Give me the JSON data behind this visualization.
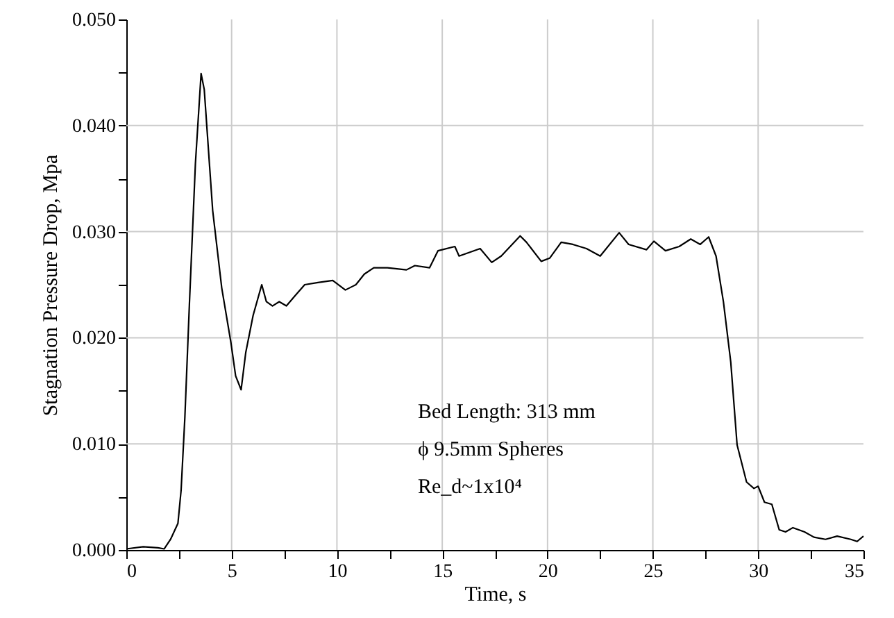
{
  "chart_data": {
    "type": "line",
    "xlabel": "Time, s",
    "ylabel": "Stagnation Pressure Drop, Mpa",
    "annotations": [
      "Bed Length: 313 mm",
      "ϕ 9.5mm Spheres",
      "Re_d~1x10⁴"
    ],
    "x": [
      0,
      0.8,
      1.5,
      1.8,
      2.1,
      2.45,
      2.6,
      2.78,
      3.0,
      3.28,
      3.55,
      3.7,
      4.1,
      4.53,
      4.97,
      5.19,
      5.45,
      5.67,
      6.02,
      6.43,
      6.65,
      6.94,
      7.26,
      7.6,
      8.03,
      8.47,
      9.1,
      9.8,
      10.4,
      10.9,
      11.3,
      11.75,
      12.4,
      13.3,
      13.7,
      14.4,
      14.8,
      15.6,
      15.8,
      16.8,
      17.35,
      17.8,
      18.7,
      19.0,
      19.7,
      20.1,
      20.65,
      21.2,
      21.85,
      22.5,
      23.4,
      23.85,
      24.7,
      25.05,
      25.6,
      26.25,
      26.8,
      27.25,
      27.65,
      28.0,
      28.35,
      28.7,
      29.0,
      29.45,
      29.8,
      30.0,
      30.3,
      30.65,
      31.0,
      31.3,
      31.65,
      32.2,
      32.65,
      33.2,
      33.75,
      34.4,
      34.7,
      35.0
    ],
    "series": [
      {
        "color": "#000000",
        "values": [
          0.0001,
          0.0003,
          0.0002,
          0.0001,
          0.001,
          0.0025,
          0.0056,
          0.0125,
          0.0234,
          0.0364,
          0.0449,
          0.0434,
          0.032,
          0.0247,
          0.0195,
          0.0164,
          0.0151,
          0.0186,
          0.0221,
          0.025,
          0.0234,
          0.023,
          0.0234,
          0.023,
          0.024,
          0.025,
          0.0252,
          0.0254,
          0.0245,
          0.025,
          0.026,
          0.0266,
          0.0266,
          0.0264,
          0.0268,
          0.0266,
          0.0282,
          0.0286,
          0.0277,
          0.0284,
          0.0271,
          0.0277,
          0.0296,
          0.029,
          0.0272,
          0.0275,
          0.029,
          0.0288,
          0.0284,
          0.0277,
          0.0299,
          0.0288,
          0.0283,
          0.0291,
          0.0282,
          0.0286,
          0.0293,
          0.0288,
          0.0295,
          0.0277,
          0.0234,
          0.0177,
          0.0099,
          0.0064,
          0.0058,
          0.006,
          0.0045,
          0.0043,
          0.0019,
          0.0017,
          0.0021,
          0.0017,
          0.0012,
          0.001,
          0.0013,
          0.001,
          0.0008,
          0.0013
        ]
      }
    ],
    "xlim": [
      0,
      35
    ],
    "xticks": [
      0,
      {
        "value": 2.5,
        "label": null
      },
      5,
      {
        "value": 7.5,
        "label": null
      },
      10,
      {
        "value": 12.5,
        "label": null
      },
      15,
      {
        "value": 17.5,
        "label": null
      },
      20,
      {
        "value": 22.5,
        "label": null
      },
      25,
      {
        "value": 27.5,
        "label": null
      },
      30,
      {
        "value": 32.5,
        "label": null
      },
      35
    ],
    "ylim": [
      0,
      0.05
    ],
    "yticks": [
      {
        "value": 0,
        "label": "0.000"
      },
      {
        "value": 0.005,
        "label": null
      },
      {
        "value": 0.01,
        "label": "0.010"
      },
      {
        "value": 0.015,
        "label": null
      },
      {
        "value": 0.02,
        "label": "0.020"
      },
      {
        "value": 0.025,
        "label": null
      },
      {
        "value": 0.03,
        "label": "0.030"
      },
      {
        "value": 0.035,
        "label": null
      },
      {
        "value": 0.04,
        "label": "0.040"
      },
      {
        "value": 0.045,
        "label": null
      },
      {
        "value": 0.05,
        "label": "0.050"
      }
    ],
    "grid": true,
    "marker": "none",
    "line_style": "solid"
  }
}
